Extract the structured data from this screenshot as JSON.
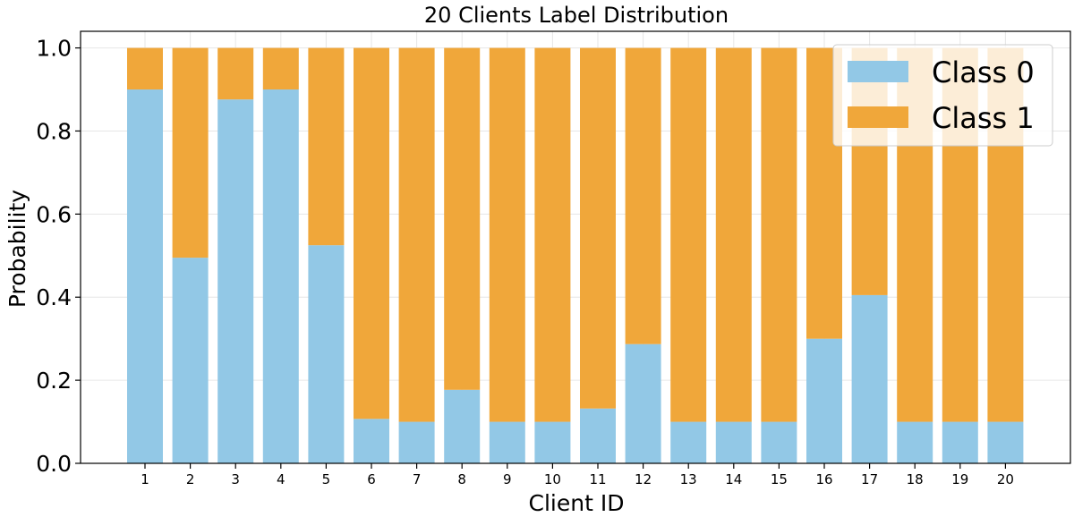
{
  "chart_data": {
    "type": "bar",
    "stacked": true,
    "title": "20 Clients Label Distribution",
    "xlabel": "Client ID",
    "ylabel": "Probability",
    "ylim": [
      0,
      1.04
    ],
    "yticks": [
      "0.0",
      "0.2",
      "0.4",
      "0.6",
      "0.8",
      "1.0"
    ],
    "grid": true,
    "legend_position": "top-right",
    "categories": [
      "1",
      "2",
      "3",
      "4",
      "5",
      "6",
      "7",
      "8",
      "9",
      "10",
      "11",
      "12",
      "13",
      "14",
      "15",
      "16",
      "17",
      "18",
      "19",
      "20"
    ],
    "series": [
      {
        "name": "Class 0",
        "color": "#92c8e6",
        "values": [
          0.9,
          0.495,
          0.876,
          0.9,
          0.525,
          0.107,
          0.1,
          0.177,
          0.1,
          0.1,
          0.132,
          0.287,
          0.1,
          0.1,
          0.1,
          0.3,
          0.405,
          0.1,
          0.1,
          0.1
        ]
      },
      {
        "name": "Class 1",
        "color": "#f0a73a",
        "values": [
          0.1,
          0.505,
          0.124,
          0.1,
          0.475,
          0.893,
          0.9,
          0.823,
          0.9,
          0.9,
          0.868,
          0.713,
          0.9,
          0.9,
          0.9,
          0.7,
          0.595,
          0.9,
          0.9,
          0.9
        ]
      }
    ]
  }
}
